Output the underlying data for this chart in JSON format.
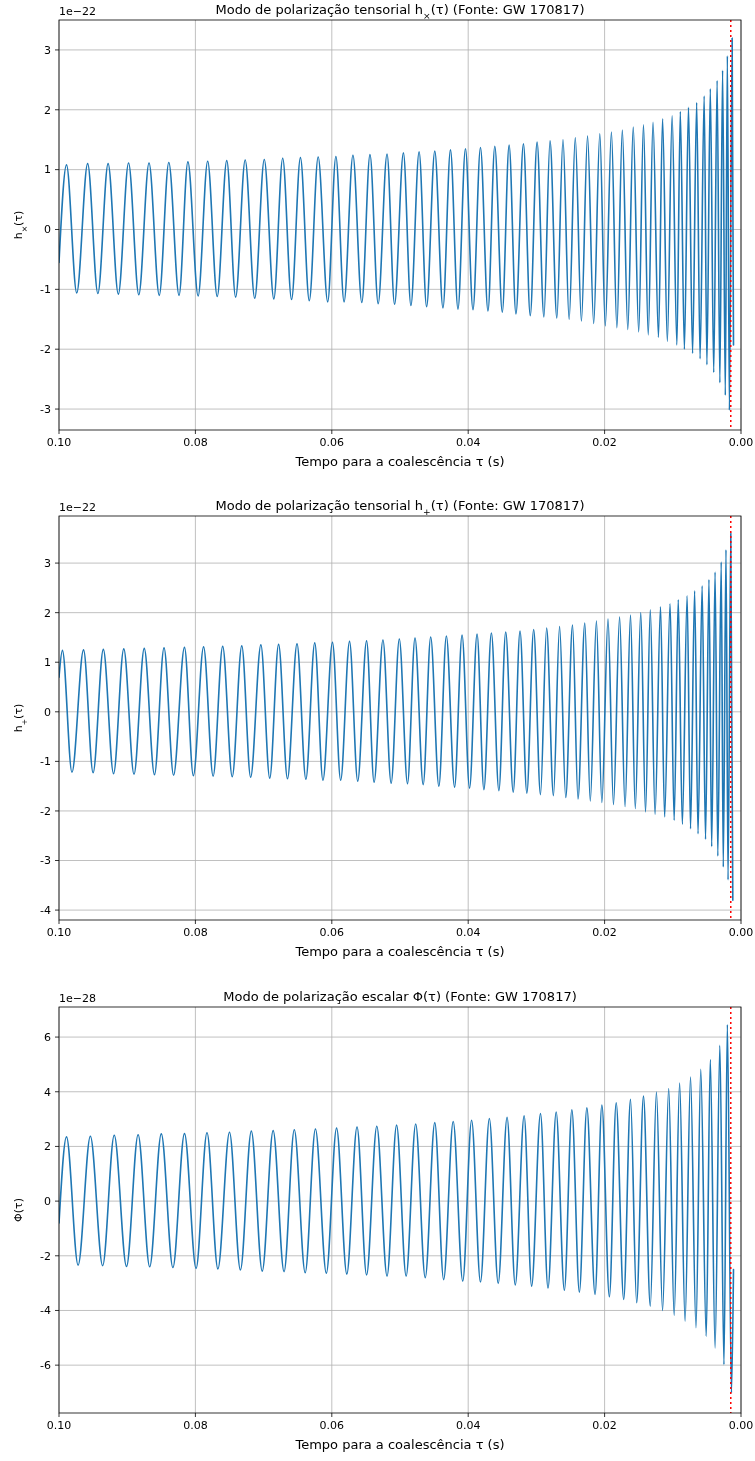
{
  "chart_data": [
    {
      "type": "line",
      "title": "Modo de polarização tensorial h$_{×}$(τ) (Fonte: GW 170817)",
      "xlabel": "Tempo para a coalescência τ (s)",
      "ylabel": "h$_{×}$(τ)",
      "annotations": [
        "1e−22"
      ],
      "xlim": [
        0.1,
        0
      ],
      "xticks": [
        {
          "value": 0.1,
          "label": "0.10"
        },
        {
          "value": 0.08,
          "label": "0.08"
        },
        {
          "value": 0.06,
          "label": "0.06"
        },
        {
          "value": 0.04,
          "label": "0.04"
        },
        {
          "value": 0.02,
          "label": "0.02"
        },
        {
          "value": 0,
          "label": "0.00"
        }
      ],
      "ylim": [
        -3.35,
        3.5
      ],
      "yticks": [
        -3,
        -2,
        -1,
        0,
        1,
        2,
        3
      ],
      "grid": true,
      "ref_lines": [
        {
          "axis": "x",
          "value": 0.0015,
          "color": "#ff0000",
          "line_style": "dotted"
        }
      ],
      "x": [
        0.1,
        0.0989,
        0.0974,
        0.0958,
        0.0943,
        0.0928,
        0.0913,
        0.0898,
        0.0883,
        0.0868,
        0.0853,
        0.0839,
        0.0824,
        0.0811,
        0.0796,
        0.0782,
        0.0768,
        0.0754,
        0.0741,
        0.0727,
        0.0713,
        0.0699,
        0.0685,
        0.0672,
        0.0659,
        0.0646,
        0.0633,
        0.062,
        0.0606,
        0.0594,
        0.0582,
        0.0569,
        0.0556,
        0.0544,
        0.0532,
        0.0519,
        0.0508,
        0.0495,
        0.0484,
        0.0472,
        0.0461,
        0.0449,
        0.0437,
        0.0426,
        0.0415,
        0.0404,
        0.0393,
        0.0382,
        0.0371,
        0.0361,
        0.035,
        0.034,
        0.033,
        0.0319,
        0.0309,
        0.0299,
        0.0289,
        0.028,
        0.027,
        0.0261,
        0.0252,
        0.0243,
        0.0234,
        0.0225,
        0.0216,
        0.0207,
        0.0199,
        0.019,
        0.0182,
        0.0174,
        0.0166,
        0.0158,
        0.015,
        0.0143,
        0.0136,
        0.0129,
        0.0121,
        0.0115,
        0.0108,
        0.0101,
        0.0094,
        0.0089,
        0.0083,
        0.0077,
        0.0071,
        0.0065,
        0.006,
        0.0054,
        0.005,
        0.0045,
        0.004,
        0.0035,
        0.0031,
        0.0027,
        0.0023,
        0.002,
        0.0017,
        0.0013,
        0.0011
      ],
      "series": [
        {
          "color": "#1f77b4",
          "values": [
            -0.55,
            1.08,
            -1.06,
            1.1,
            -1.07,
            1.1,
            -1.08,
            1.11,
            -1.09,
            1.11,
            -1.1,
            1.12,
            -1.1,
            1.13,
            -1.11,
            1.14,
            -1.12,
            1.15,
            -1.13,
            1.16,
            -1.15,
            1.17,
            -1.16,
            1.19,
            -1.17,
            1.2,
            -1.19,
            1.21,
            -1.21,
            1.22,
            -1.21,
            1.24,
            -1.22,
            1.25,
            -1.24,
            1.26,
            -1.25,
            1.28,
            -1.27,
            1.3,
            -1.29,
            1.31,
            -1.31,
            1.33,
            -1.33,
            1.35,
            -1.34,
            1.37,
            -1.36,
            1.39,
            -1.38,
            1.41,
            -1.41,
            1.43,
            -1.44,
            1.46,
            -1.46,
            1.48,
            -1.48,
            1.5,
            -1.5,
            1.53,
            -1.53,
            1.56,
            -1.57,
            1.6,
            -1.61,
            1.63,
            -1.64,
            1.66,
            -1.67,
            1.71,
            -1.71,
            1.75,
            -1.76,
            1.79,
            -1.8,
            1.85,
            -1.87,
            1.9,
            -1.93,
            1.97,
            -2.0,
            2.04,
            -2.07,
            2.12,
            -2.16,
            2.23,
            -2.26,
            2.35,
            -2.39,
            2.49,
            -2.56,
            2.66,
            -2.77,
            2.9,
            -3.02,
            3.2,
            -1.93
          ]
        }
      ]
    },
    {
      "type": "line",
      "title": "Modo de polarização tensorial h$_{+}$(τ) (Fonte: GW 170817)",
      "xlabel": "Tempo para a coalescência τ (s)",
      "ylabel": "h$_{+}$(τ)",
      "annotations": [
        "1e−22"
      ],
      "xlim": [
        0.1,
        0
      ],
      "xticks": [
        {
          "value": 0.1,
          "label": "0.10"
        },
        {
          "value": 0.08,
          "label": "0.08"
        },
        {
          "value": 0.06,
          "label": "0.06"
        },
        {
          "value": 0.04,
          "label": "0.04"
        },
        {
          "value": 0.02,
          "label": "0.02"
        },
        {
          "value": 0,
          "label": "0.00"
        }
      ],
      "ylim": [
        -4.2,
        3.95
      ],
      "yticks": [
        -4,
        -3,
        -2,
        -1,
        0,
        1,
        2,
        3
      ],
      "grid": true,
      "ref_lines": [
        {
          "axis": "x",
          "value": 0.0015,
          "color": "#ff0000",
          "line_style": "dotted"
        }
      ],
      "x": [
        0.1,
        0.0995,
        0.0981,
        0.0964,
        0.095,
        0.0935,
        0.092,
        0.0905,
        0.089,
        0.0875,
        0.086,
        0.0846,
        0.0832,
        0.0816,
        0.0803,
        0.0788,
        0.0774,
        0.076,
        0.0746,
        0.0732,
        0.0719,
        0.0704,
        0.0691,
        0.0678,
        0.0665,
        0.0651,
        0.0638,
        0.0625,
        0.0613,
        0.0599,
        0.0587,
        0.0574,
        0.0562,
        0.0549,
        0.0538,
        0.0525,
        0.0513,
        0.0501,
        0.0489,
        0.0478,
        0.0466,
        0.0455,
        0.0443,
        0.0432,
        0.042,
        0.0409,
        0.0398,
        0.0387,
        0.0377,
        0.0366,
        0.0355,
        0.0345,
        0.0334,
        0.0324,
        0.0314,
        0.0304,
        0.0294,
        0.0285,
        0.0275,
        0.0266,
        0.0257,
        0.0247,
        0.0239,
        0.0229,
        0.0221,
        0.0212,
        0.0204,
        0.0195,
        0.0187,
        0.0178,
        0.017,
        0.0162,
        0.0155,
        0.0147,
        0.014,
        0.0133,
        0.0126,
        0.0118,
        0.0112,
        0.0104,
        0.0098,
        0.0092,
        0.0086,
        0.0079,
        0.0074,
        0.0068,
        0.0063,
        0.0057,
        0.0052,
        0.0047,
        0.0043,
        0.0038,
        0.0034,
        0.0029,
        0.0026,
        0.0022,
        0.0019,
        0.0015,
        0.0012
      ],
      "series": [
        {
          "color": "#1f77b4",
          "values": [
            0.7,
            1.24,
            -1.22,
            1.25,
            -1.23,
            1.26,
            -1.25,
            1.27,
            -1.26,
            1.28,
            -1.27,
            1.29,
            -1.28,
            1.3,
            -1.29,
            1.31,
            -1.3,
            1.32,
            -1.31,
            1.33,
            -1.32,
            1.35,
            -1.34,
            1.36,
            -1.35,
            1.37,
            -1.36,
            1.39,
            -1.38,
            1.4,
            -1.38,
            1.42,
            -1.4,
            1.43,
            -1.42,
            1.45,
            -1.44,
            1.47,
            -1.45,
            1.49,
            -1.47,
            1.51,
            -1.5,
            1.53,
            -1.52,
            1.55,
            -1.54,
            1.57,
            -1.57,
            1.59,
            -1.59,
            1.61,
            -1.62,
            1.63,
            -1.64,
            1.66,
            -1.67,
            1.69,
            -1.69,
            1.72,
            -1.73,
            1.75,
            -1.76,
            1.79,
            -1.8,
            1.83,
            -1.83,
            1.87,
            -1.87,
            1.91,
            -1.91,
            1.95,
            -1.95,
            2.0,
            -2.02,
            2.06,
            -2.07,
            2.12,
            -2.12,
            2.18,
            -2.19,
            2.26,
            -2.27,
            2.34,
            -2.36,
            2.44,
            -2.46,
            2.54,
            -2.57,
            2.67,
            -2.72,
            2.82,
            -2.91,
            3.02,
            -3.13,
            3.27,
            -3.39,
            3.6,
            -3.8
          ]
        }
      ]
    },
    {
      "type": "line",
      "title": "Modo de polarização escalar Φ(τ)  (Fonte: GW 170817)",
      "xlabel": "Tempo para a coalescência τ (s)",
      "ylabel": "Φ(τ)",
      "annotations": [
        "1e−28"
      ],
      "xlim": [
        0.1,
        0
      ],
      "xticks": [
        {
          "value": 0.1,
          "label": "0.10"
        },
        {
          "value": 0.08,
          "label": "0.08"
        },
        {
          "value": 0.06,
          "label": "0.06"
        },
        {
          "value": 0.04,
          "label": "0.04"
        },
        {
          "value": 0.02,
          "label": "0.02"
        },
        {
          "value": 0,
          "label": "0.00"
        }
      ],
      "ylim": [
        -7.75,
        7.1
      ],
      "yticks": [
        -6,
        -4,
        -2,
        0,
        2,
        4,
        6
      ],
      "grid": true,
      "ref_lines": [
        {
          "axis": "x",
          "value": 0.0015,
          "color": "#ff0000",
          "line_style": "dotted"
        }
      ],
      "x": [
        0.1,
        0.0989,
        0.0972,
        0.0954,
        0.0936,
        0.0919,
        0.0901,
        0.0884,
        0.0867,
        0.085,
        0.0833,
        0.0816,
        0.0799,
        0.0783,
        0.0767,
        0.075,
        0.0734,
        0.0718,
        0.0702,
        0.0686,
        0.067,
        0.0655,
        0.0639,
        0.0624,
        0.0608,
        0.0593,
        0.0578,
        0.0563,
        0.0549,
        0.0534,
        0.0519,
        0.0505,
        0.0491,
        0.0477,
        0.0463,
        0.0449,
        0.0436,
        0.0422,
        0.0408,
        0.0395,
        0.0382,
        0.0369,
        0.0356,
        0.0343,
        0.0331,
        0.0318,
        0.0307,
        0.0294,
        0.0283,
        0.0271,
        0.0259,
        0.0248,
        0.0237,
        0.0226,
        0.0214,
        0.0204,
        0.0193,
        0.0183,
        0.0172,
        0.0162,
        0.0153,
        0.0143,
        0.0133,
        0.0124,
        0.0115,
        0.0106,
        0.0098,
        0.009,
        0.0082,
        0.0074,
        0.0066,
        0.0059,
        0.0051,
        0.0045,
        0.0038,
        0.0031,
        0.0025,
        0.002,
        0.0014,
        0.0011
      ],
      "series": [
        {
          "color": "#1f77b4",
          "values": [
            -0.8,
            2.35,
            -2.34,
            2.37,
            -2.36,
            2.41,
            -2.39,
            2.43,
            -2.4,
            2.46,
            -2.43,
            2.47,
            -2.46,
            2.5,
            -2.48,
            2.52,
            -2.52,
            2.56,
            -2.56,
            2.58,
            -2.58,
            2.61,
            -2.62,
            2.64,
            -2.64,
            2.67,
            -2.67,
            2.71,
            -2.7,
            2.74,
            -2.74,
            2.78,
            -2.74,
            2.82,
            -2.8,
            2.87,
            -2.87,
            2.91,
            -2.93,
            2.96,
            -2.96,
            3.02,
            -3.01,
            3.07,
            -3.07,
            3.12,
            -3.11,
            3.2,
            -3.18,
            3.26,
            -3.26,
            3.34,
            -3.33,
            3.41,
            -3.41,
            3.51,
            -3.5,
            3.6,
            -3.6,
            3.72,
            -3.72,
            3.84,
            -3.84,
            3.99,
            -4.0,
            4.12,
            -4.18,
            4.32,
            -4.39,
            4.54,
            -4.63,
            4.82,
            -4.94,
            5.18,
            -5.37,
            5.7,
            -5.98,
            6.46,
            -7.01,
            -2.5
          ]
        }
      ]
    }
  ]
}
